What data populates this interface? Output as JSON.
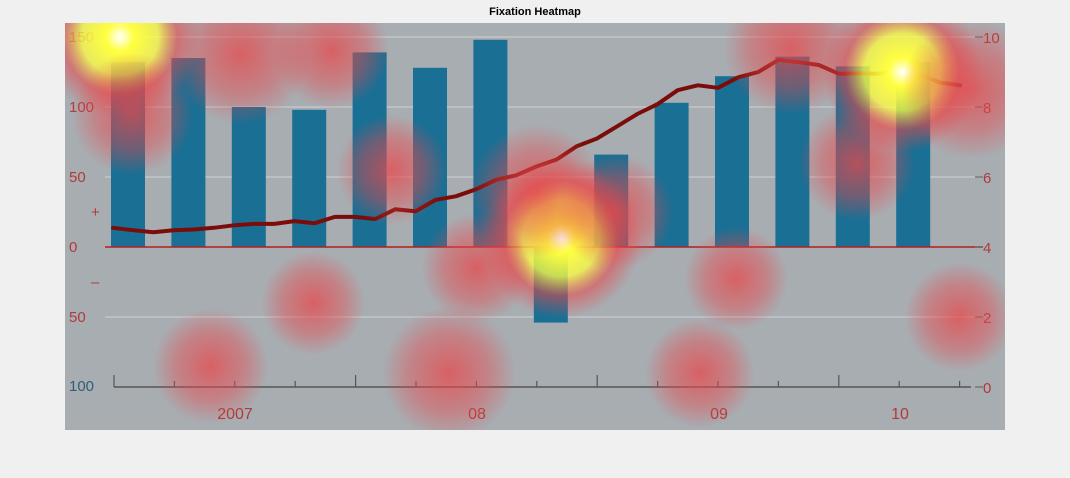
{
  "figure_title": "Fixation Heatmap",
  "colors": {
    "page_background": "#f0f0f0",
    "chart_background": "#a8adb2",
    "bar": "#1a6f94",
    "line": "#7a0d0a",
    "zero_line": "#b02020",
    "left_axis_text": "#b23a3a",
    "right_axis_text": "#b23a3a",
    "year_text": "#b23a3a",
    "heat_low": "#e8474a",
    "heat_high": "#ffff40"
  },
  "chart_data": {
    "type": "bar",
    "overlay": "line",
    "title": "",
    "x_axis": {
      "tick_labels": [
        "2007",
        "08",
        "09",
        "10"
      ]
    },
    "left_axis": {
      "ylim": [
        -100,
        150
      ],
      "tick_labels": [
        {
          "value": 150,
          "label": "150"
        },
        {
          "value": 100,
          "label": "100"
        },
        {
          "value": 50,
          "label": "50"
        },
        {
          "value": 25,
          "label": "+"
        },
        {
          "value": 0,
          "label": "0"
        },
        {
          "value": -25,
          "label": "–"
        },
        {
          "value": -50,
          "label": "50"
        },
        {
          "value": -100,
          "label": "100"
        }
      ]
    },
    "right_axis": {
      "ylim": [
        0,
        10
      ],
      "tick_labels": [
        "0",
        "2",
        "4",
        "6",
        "8",
        "10"
      ]
    },
    "bars": {
      "axis": "left",
      "values": [
        132,
        135,
        100,
        98,
        139,
        128,
        148,
        -54,
        66,
        103,
        122,
        136,
        129,
        132
      ]
    },
    "line": {
      "axis": "right",
      "values": [
        4.55,
        4.48,
        4.42,
        4.48,
        4.5,
        4.55,
        4.62,
        4.66,
        4.66,
        4.74,
        4.68,
        4.86,
        4.86,
        4.8,
        5.08,
        5.02,
        5.35,
        5.45,
        5.65,
        5.92,
        6.05,
        6.3,
        6.5,
        6.88,
        7.1,
        7.45,
        7.8,
        8.08,
        8.48,
        8.62,
        8.55,
        8.85,
        9.0,
        9.35,
        9.28,
        9.2,
        8.95,
        8.96,
        8.95,
        9.12,
        8.92,
        8.7,
        8.62
      ]
    },
    "grid": true,
    "heatmap_overlay": [
      {
        "x": 7.4,
        "y_right": 4.25,
        "intensity": 1.0
      },
      {
        "x": 0.1,
        "y_right": 10.0,
        "intensity": 0.9
      },
      {
        "x": 13.05,
        "y_right": 9.0,
        "intensity": 0.9
      },
      {
        "x": 14.2,
        "y_right": 8.5,
        "intensity": 0.5
      },
      {
        "x": 2.1,
        "y_right": 9.5,
        "intensity": 0.5
      },
      {
        "x": 7.0,
        "y_right": 5.6,
        "intensity": 0.45
      },
      {
        "x": 5.55,
        "y_right": 0.4,
        "intensity": 0.45
      },
      {
        "x": 11.2,
        "y_right": 9.7,
        "intensity": 0.45
      },
      {
        "x": 0.3,
        "y_right": 7.8,
        "intensity": 0.35
      },
      {
        "x": 3.6,
        "y_right": 9.6,
        "intensity": 0.3
      },
      {
        "x": 8.3,
        "y_right": 5.0,
        "intensity": 0.3
      },
      {
        "x": 4.6,
        "y_right": 6.2,
        "intensity": 0.25
      },
      {
        "x": 12.3,
        "y_right": 6.4,
        "intensity": 0.3
      },
      {
        "x": 1.6,
        "y_right": 0.6,
        "intensity": 0.3
      },
      {
        "x": 9.7,
        "y_right": 0.4,
        "intensity": 0.25
      },
      {
        "x": 14.0,
        "y_right": 2.0,
        "intensity": 0.25
      },
      {
        "x": 6.0,
        "y_right": 3.4,
        "intensity": 0.25
      },
      {
        "x": 10.3,
        "y_right": 3.1,
        "intensity": 0.2
      },
      {
        "x": 3.3,
        "y_right": 2.4,
        "intensity": 0.2
      }
    ]
  }
}
